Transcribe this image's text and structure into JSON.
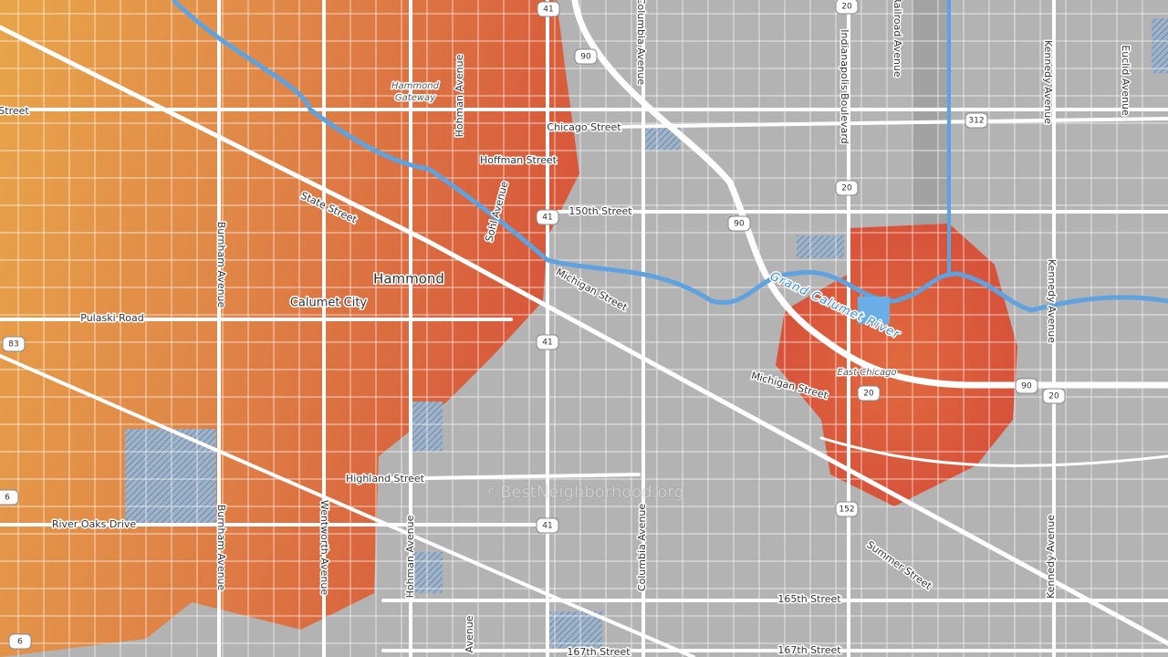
{
  "labels": [
    "Street",
    "Hammond",
    "Gateway",
    "Hohman Avenue",
    "Chicago Street",
    "Hoffman Street",
    "150th Street",
    "State Street",
    "Sohl Avenue",
    "Hammond",
    "Calumet City",
    "Pulaski Road",
    "Burnham Avenue",
    "Michigan Street",
    "Grand Calumet River",
    "East Chicago",
    "Michigan Street",
    "Columbia Avenue",
    "Indianapolis Boulevard",
    "Railroad Avenue",
    "Kennedy Avenue",
    "Euclid Avenue",
    "Kennedy Avenue",
    "Highland Street",
    "Wentworth Avenue",
    "Burnham Avenue",
    "River Oaks Drive",
    "Hohman Avenue",
    "Columbia Avenue",
    "Summer Street",
    "165th Street",
    "Kennedy Avenue",
    "167th Street",
    "167th Street",
    "Avenue"
  ],
  "shields": [
    "41",
    "90",
    "20",
    "312",
    "41",
    "90",
    "20",
    "41",
    "90",
    "20",
    "20",
    "83",
    "6",
    "152",
    "41",
    "6"
  ],
  "watermark": "©BestNeighborhood.org"
}
